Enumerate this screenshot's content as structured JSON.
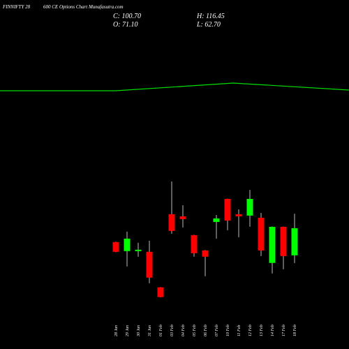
{
  "chart_data": {
    "type": "candlestick",
    "title": "FINNIFTY 28",
    "subtitle": "600  CE Options  Chart Munafasutra.com",
    "ohlc_labels": [
      {
        "value": 100.7,
        "label": "C: 100.70"
      },
      {
        "value": 71.1,
        "label": "O: 71.10"
      },
      {
        "value": 116.45,
        "label": "H: 116.45"
      },
      {
        "value": 62.7,
        "label": "L: 62.70"
      }
    ],
    "up_color": "#00ff00",
    "down_color": "#ff0000",
    "categories": [
      "28 Jan",
      "29 Jan",
      "30 Jan",
      "31 Jan",
      "01 Feb",
      "03 Feb",
      "04 Feb",
      "05 Feb",
      "06 Feb",
      "07 Feb",
      "10 Feb",
      "11 Feb",
      "12 Feb",
      "13 Feb",
      "14 Feb",
      "17 Feb",
      "18 Feb"
    ],
    "open": [
      85.5,
      75.7,
      76.4,
      74.9,
      36.2,
      115.9,
      113.6,
      93.1,
      76.4,
      107.5,
      132.6,
      115.9,
      114.4,
      112.1,
      62.8,
      102.2,
      71.1
    ],
    "high": [
      86,
      96.9,
      84.8,
      87.0,
      36.5,
      151.6,
      125.7,
      93.5,
      76.8,
      115.1,
      133,
      121.2,
      142.4,
      117.4,
      102.5,
      102.5,
      116.45
    ],
    "low": [
      74.5,
      59.0,
      69.6,
      40.7,
      25.3,
      94.6,
      101.5,
      69.6,
      48.3,
      89.3,
      98.4,
      90.8,
      102.2,
      70.3,
      51.4,
      55.9,
      62.7
    ],
    "close": [
      74.9,
      89.3,
      77.2,
      46.8,
      25.6,
      97.7,
      110.6,
      73.4,
      69.6,
      111.3,
      109.0,
      113.6,
      132.6,
      76.4,
      102.2,
      70.3,
      100.7
    ]
  }
}
